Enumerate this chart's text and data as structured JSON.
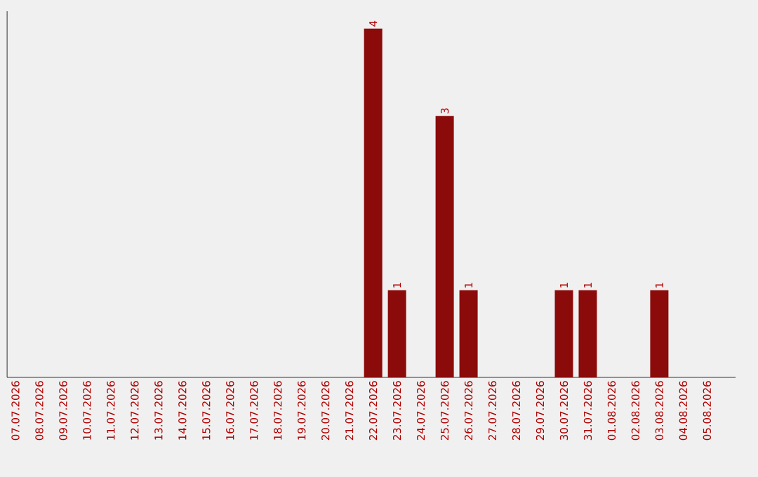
{
  "chart_data": {
    "type": "bar",
    "categories": [
      "07.07.2026",
      "08.07.2026",
      "09.07.2026",
      "10.07.2026",
      "11.07.2026",
      "12.07.2026",
      "13.07.2026",
      "14.07.2026",
      "15.07.2026",
      "16.07.2026",
      "17.07.2026",
      "18.07.2026",
      "19.07.2026",
      "20.07.2026",
      "21.07.2026",
      "22.07.2026",
      "23.07.2026",
      "24.07.2026",
      "25.07.2026",
      "26.07.2026",
      "27.07.2026",
      "28.07.2026",
      "29.07.2026",
      "30.07.2026",
      "31.07.2026",
      "01.08.2026",
      "02.08.2026",
      "03.08.2026",
      "04.08.2026",
      "05.08.2026"
    ],
    "values": [
      null,
      null,
      null,
      null,
      null,
      null,
      null,
      null,
      null,
      null,
      null,
      null,
      null,
      null,
      null,
      4,
      1,
      null,
      3,
      1,
      null,
      null,
      null,
      1,
      1,
      null,
      null,
      1,
      null,
      null
    ],
    "data_labels": true,
    "color": "#8b0a0a",
    "ylim": [
      0,
      4.2
    ]
  }
}
